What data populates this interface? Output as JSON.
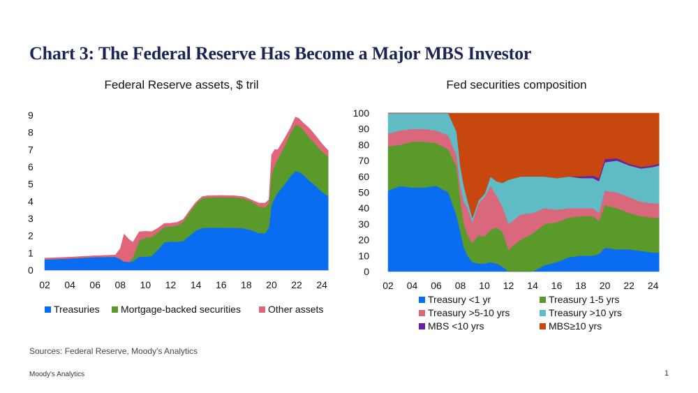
{
  "title": "Chart 3: The Federal Reserve Has Become a Major MBS Investor",
  "sources": "Sources: Federal Reserve, Moody's Analytics",
  "footer": "Moody's Analytics",
  "page_number": "1",
  "colors": {
    "title": "#1a2456",
    "treasuries": "#0a6cf0",
    "mbs": "#5a9a2a",
    "other": "#e0657a",
    "t_lt1": "#0a6cf0",
    "t_1_5": "#5a9a2a",
    "t_5_10": "#d9687c",
    "t_gt10": "#5fbcc4",
    "mbs_lt10": "#6a1fa0",
    "mbs_ge10": "#c8470e"
  },
  "chart_data": [
    {
      "type": "area",
      "stacked": true,
      "title": "Federal Reserve assets, $ tril",
      "xlim": [
        2002,
        2024.6
      ],
      "ylim": [
        0,
        9
      ],
      "x_ticks": [
        "02",
        "04",
        "06",
        "08",
        "10",
        "12",
        "14",
        "16",
        "18",
        "20",
        "22",
        "24"
      ],
      "y_ticks": [
        "0",
        "1",
        "2",
        "3",
        "4",
        "5",
        "6",
        "7",
        "8",
        "9"
      ],
      "legend": [
        "Treasuries",
        "Mortgage-backed securities",
        "Other assets"
      ],
      "legend_placement": "bottom",
      "x": [
        2002,
        2004,
        2006,
        2007.6,
        2008.0,
        2008.3,
        2008.7,
        2009.0,
        2009.5,
        2010.0,
        2010.5,
        2011.0,
        2011.5,
        2012.0,
        2012.5,
        2013.0,
        2013.5,
        2014.0,
        2014.5,
        2015.0,
        2016.0,
        2017.0,
        2017.8,
        2018.5,
        2019.0,
        2019.5,
        2019.8,
        2020.0,
        2020.25,
        2020.5,
        2021.0,
        2021.5,
        2021.9,
        2022.2,
        2022.5,
        2023.0,
        2023.5,
        2024.0,
        2024.5
      ],
      "series": [
        {
          "name": "Treasuries",
          "values": [
            0.62,
            0.68,
            0.76,
            0.78,
            0.65,
            0.5,
            0.48,
            0.52,
            0.78,
            0.78,
            0.82,
            1.2,
            1.62,
            1.65,
            1.65,
            1.7,
            2.0,
            2.3,
            2.45,
            2.47,
            2.47,
            2.46,
            2.43,
            2.3,
            2.15,
            2.15,
            2.5,
            3.8,
            4.2,
            4.5,
            4.95,
            5.45,
            5.75,
            5.7,
            5.55,
            5.2,
            4.9,
            4.55,
            4.3
          ]
        },
        {
          "name": "Mortgage-backed securities",
          "values": [
            0,
            0,
            0,
            0,
            0,
            0,
            0,
            0.2,
            0.95,
            1.1,
            1.12,
            1.0,
            0.88,
            0.88,
            0.95,
            1.1,
            1.35,
            1.55,
            1.73,
            1.76,
            1.77,
            1.77,
            1.74,
            1.66,
            1.55,
            1.5,
            1.4,
            1.8,
            1.9,
            1.95,
            2.2,
            2.5,
            2.7,
            2.68,
            2.62,
            2.5,
            2.42,
            2.35,
            2.3
          ]
        },
        {
          "name": "Other assets",
          "values": [
            0.08,
            0.08,
            0.08,
            0.1,
            0.6,
            1.6,
            1.3,
            0.9,
            0.5,
            0.38,
            0.3,
            0.25,
            0.22,
            0.2,
            0.18,
            0.15,
            0.12,
            0.1,
            0.1,
            0.1,
            0.1,
            0.1,
            0.1,
            0.1,
            0.2,
            0.25,
            0.2,
            1.1,
            0.9,
            0.55,
            0.45,
            0.3,
            0.45,
            0.42,
            0.4,
            0.55,
            0.5,
            0.45,
            0.35
          ]
        }
      ]
    },
    {
      "type": "area",
      "stacked": true,
      "title": "Fed securities composition",
      "xlim": [
        2002,
        2024.6
      ],
      "ylim": [
        0,
        100
      ],
      "x_ticks": [
        "02",
        "04",
        "06",
        "08",
        "10",
        "12",
        "14",
        "16",
        "18",
        "20",
        "22",
        "24"
      ],
      "y_ticks": [
        "0",
        "10",
        "20",
        "30",
        "40",
        "50",
        "60",
        "70",
        "80",
        "90",
        "100"
      ],
      "legend": [
        "Treasury <1 yr",
        "Treasury 1-5 yrs",
        "Treasury >5-10 yrs",
        "Treasury >10 yrs",
        "MBS <10 yrs",
        "MBS≥10 yrs"
      ],
      "legend_placement": "bottom",
      "x": [
        2002,
        2003,
        2004,
        2005,
        2006,
        2007,
        2007.7,
        2008.0,
        2008.3,
        2008.6,
        2009.0,
        2009.5,
        2010.0,
        2010.5,
        2011.0,
        2011.5,
        2012.0,
        2013.0,
        2014.0,
        2015.0,
        2016.0,
        2017.0,
        2018.0,
        2019.0,
        2019.5,
        2020.0,
        2021.0,
        2022.0,
        2023.0,
        2024.0,
        2024.5
      ],
      "series": [
        {
          "name": "Treasury <1 yr",
          "values": [
            51,
            54,
            53,
            53,
            54,
            50,
            35,
            25,
            15,
            10,
            6,
            5,
            5,
            6,
            5,
            3,
            0,
            0,
            0,
            4,
            6,
            9,
            10,
            10,
            11,
            15,
            14,
            14,
            13,
            12,
            12
          ]
        },
        {
          "name": "Treasury 1-5 yrs",
          "values": [
            28,
            26,
            29,
            29,
            27,
            27,
            31,
            20,
            15,
            13,
            12,
            18,
            17,
            20,
            23,
            22,
            14,
            20,
            24,
            26,
            25,
            25,
            25,
            25,
            21,
            27,
            26,
            23,
            22,
            22,
            22
          ]
        },
        {
          "name": "Treasury >5-10 yrs",
          "values": [
            8,
            9,
            8,
            8,
            8,
            9,
            7,
            9,
            14,
            17,
            13,
            20,
            25,
            28,
            20,
            16,
            16,
            16,
            13,
            10,
            8,
            6,
            5,
            5,
            5,
            9,
            10,
            10,
            9,
            9,
            9
          ]
        },
        {
          "name": "Treasury >10 yrs",
          "values": [
            13,
            11,
            10,
            10,
            11,
            14,
            15,
            13,
            10,
            5,
            3,
            2,
            2,
            6,
            9,
            15,
            28,
            24,
            23,
            20,
            20,
            20,
            19,
            19,
            20,
            18,
            20,
            20,
            21,
            23,
            24
          ]
        },
        {
          "name": "MBS <10 yrs",
          "values": [
            0,
            0,
            0,
            0,
            0,
            0,
            0,
            0,
            0,
            0,
            0,
            0,
            0,
            0,
            0,
            0,
            0,
            0,
            0,
            0,
            0,
            0,
            1,
            1.5,
            2,
            2,
            1.5,
            1,
            1,
            1,
            1
          ]
        },
        {
          "name": "MBS≥10 yrs",
          "values": [
            0,
            0,
            0,
            0,
            0,
            0,
            12,
            33,
            46,
            55,
            66,
            55,
            51,
            40,
            43,
            44,
            42,
            40,
            40,
            40,
            41,
            40,
            40,
            39.5,
            41,
            29,
            28.5,
            32,
            34,
            33,
            32
          ]
        }
      ]
    }
  ]
}
